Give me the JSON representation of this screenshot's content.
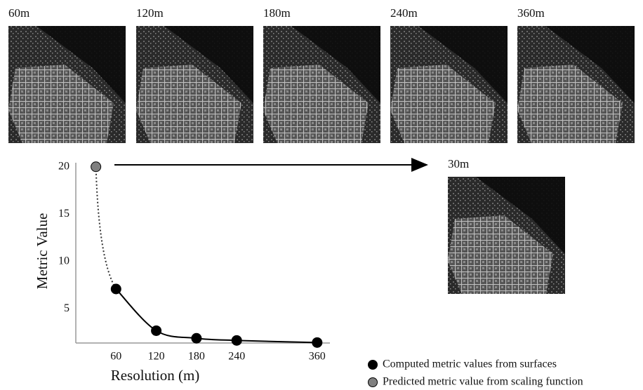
{
  "images": [
    {
      "label": "60m"
    },
    {
      "label": "120m"
    },
    {
      "label": "180m"
    },
    {
      "label": "240m"
    },
    {
      "label": "360m"
    },
    {
      "label": "30m"
    }
  ],
  "chart_data": {
    "type": "scatter",
    "x_label": "Resolution (m)",
    "y_label": "Metric Value",
    "xlim": [
      0,
      378
    ],
    "xticks": [
      60,
      120,
      180,
      240,
      360
    ],
    "ylim": [
      1.4,
      20.5
    ],
    "yticks": [
      5,
      10,
      15,
      20
    ],
    "series": [
      {
        "name": "Computed metric values from surfaces",
        "color": "#000000",
        "x": [
          60,
          120,
          180,
          240,
          360
        ],
        "values": [
          7.1,
          2.7,
          1.9,
          1.67,
          1.45
        ]
      },
      {
        "name": "Predicted metric value from scaling function",
        "color": "#808080",
        "x": [
          30
        ],
        "values": [
          20
        ]
      }
    ]
  }
}
